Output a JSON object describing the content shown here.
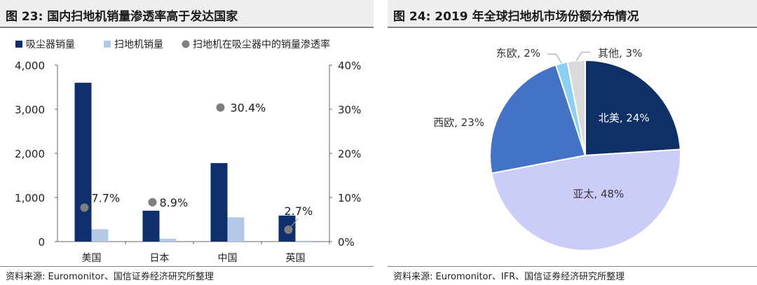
{
  "left": {
    "title": "图 23: 国内扫地机销量渗透率高于发达国家",
    "source": "资料来源: Euromonitor、国信证券经济研究所整理"
  },
  "right": {
    "title": "图 24: 2019 年全球扫地机市场份额分布情况",
    "source": "资料来源: Euromonitor、IFR、国信证券经济研究所整理"
  },
  "chart_data": [
    {
      "type": "bar",
      "title": "国内扫地机销量渗透率高于发达国家",
      "categories": [
        "美国",
        "日本",
        "中国",
        "英国"
      ],
      "series": [
        {
          "name": "吸尘器销量",
          "values": [
            3600,
            700,
            1780,
            590
          ],
          "color": "#0d2f6b",
          "axis": "left"
        },
        {
          "name": "扫地机销量",
          "values": [
            280,
            65,
            550,
            20
          ],
          "color": "#b4c9e6",
          "axis": "left"
        },
        {
          "name": "扫地机在吸尘器中的销量渗透率",
          "values": [
            7.7,
            8.9,
            30.4,
            2.7
          ],
          "color": "#7f7f7f",
          "axis": "right",
          "style": "scatter"
        }
      ],
      "point_labels": [
        "7.7%",
        "8.9%",
        "30.4%",
        "2.7%"
      ],
      "ylim_left": [
        0,
        4000
      ],
      "yticks_left": [
        "0",
        "1,000",
        "2,000",
        "3,000",
        "4,000"
      ],
      "ylim_right": [
        0,
        40
      ],
      "yticks_right": [
        "0%",
        "10%",
        "20%",
        "30%",
        "40%"
      ],
      "legend_position": "top"
    },
    {
      "type": "pie",
      "title": "2019 年全球扫地机市场份额分布情况",
      "slices": [
        {
          "label": "北美",
          "value": 24,
          "text": "北美, 24%",
          "color": "#0e3066"
        },
        {
          "label": "亚太",
          "value": 48,
          "text": "亚太, 48%",
          "color": "#ccccf9"
        },
        {
          "label": "西欧",
          "value": 23,
          "text": "西欧, 23%",
          "color": "#4472c4"
        },
        {
          "label": "东欧",
          "value": 2,
          "text": "东欧, 2%",
          "color": "#8dcef3"
        },
        {
          "label": "其他",
          "value": 3,
          "text": "其他, 3%",
          "color": "#d9d9d9"
        }
      ]
    }
  ]
}
